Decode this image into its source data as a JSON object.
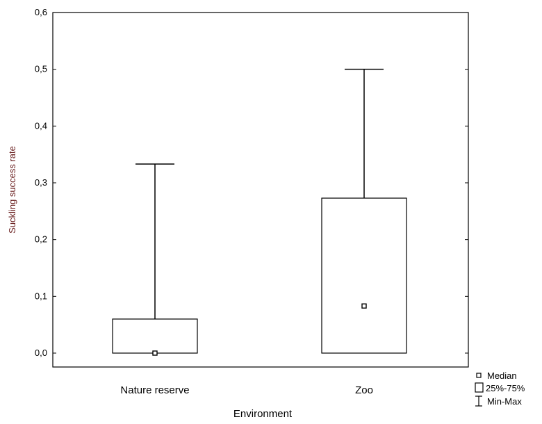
{
  "chart_data": {
    "type": "box",
    "xlabel": "Environment",
    "ylabel": "Suckling success rate",
    "ylim": [
      0.0,
      0.6
    ],
    "yticks": [
      "0,0",
      "0,1",
      "0,2",
      "0,3",
      "0,4",
      "0,5",
      "0,6"
    ],
    "categories": [
      "Nature reserve",
      "Zoo"
    ],
    "boxes": [
      {
        "category": "Nature reserve",
        "min": 0.0,
        "q1": 0.0,
        "median": 0.0,
        "q3": 0.06,
        "max": 0.333
      },
      {
        "category": "Zoo",
        "min": 0.0,
        "q1": 0.0,
        "median": 0.083,
        "q3": 0.273,
        "max": 0.5
      }
    ],
    "legend": {
      "position": "bottom-right",
      "entries": [
        {
          "symbol": "median-square",
          "label": "Median"
        },
        {
          "symbol": "box",
          "label": "25%-75%"
        },
        {
          "symbol": "whisker",
          "label": "Min-Max"
        }
      ]
    },
    "grid": false
  }
}
